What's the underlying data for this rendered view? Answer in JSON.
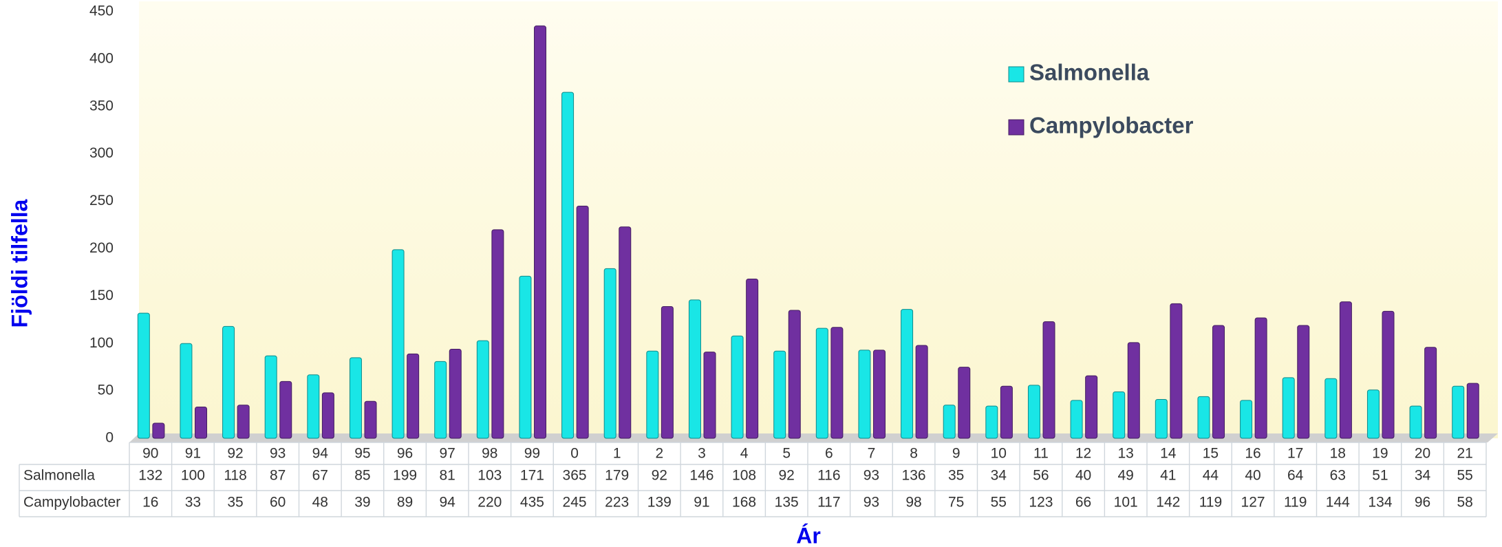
{
  "chart_data": {
    "type": "bar",
    "y_label": "Fjöldi tilfella",
    "x_label": "Ár",
    "categories": [
      "90",
      "91",
      "92",
      "93",
      "94",
      "95",
      "96",
      "97",
      "98",
      "99",
      "0",
      "1",
      "2",
      "3",
      "4",
      "5",
      "6",
      "7",
      "8",
      "9",
      "10",
      "11",
      "12",
      "13",
      "14",
      "15",
      "16",
      "17",
      "18",
      "19",
      "20",
      "21"
    ],
    "series": [
      {
        "name": "Salmonella",
        "color": "#19e6e6",
        "values": [
          132,
          100,
          118,
          87,
          67,
          85,
          199,
          81,
          103,
          171,
          365,
          179,
          92,
          146,
          108,
          92,
          116,
          93,
          136,
          35,
          34,
          56,
          40,
          49,
          41,
          44,
          40,
          64,
          63,
          51,
          34,
          55
        ]
      },
      {
        "name": "Campylobacter",
        "color": "#7030a0",
        "values": [
          16,
          33,
          35,
          60,
          48,
          39,
          89,
          94,
          220,
          435,
          245,
          223,
          139,
          91,
          168,
          135,
          117,
          93,
          98,
          75,
          55,
          123,
          66,
          101,
          142,
          119,
          127,
          119,
          144,
          134,
          96,
          58
        ]
      }
    ],
    "ylim": [
      0,
      450
    ],
    "yticks": [
      0,
      50,
      100,
      150,
      200,
      250,
      300,
      350,
      400,
      450
    ],
    "grid": false,
    "legend": "upper right"
  }
}
